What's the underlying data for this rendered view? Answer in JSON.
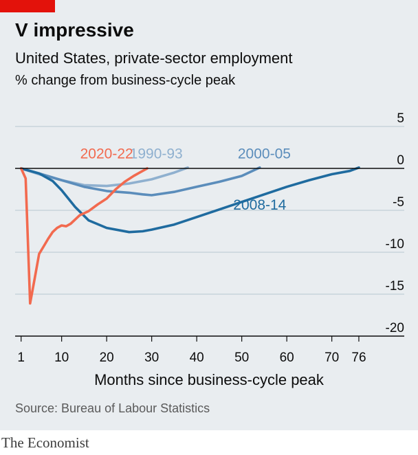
{
  "header": {
    "title": "V impressive",
    "subtitle": "United States, private-sector employment",
    "unit": "% change from business-cycle peak"
  },
  "footer": {
    "source": "Source: Bureau of Labour Statistics",
    "brand": "The Economist"
  },
  "colors": {
    "background": "#e9edf0",
    "grid": "#b7c6cf",
    "zero_line": "#0c0c0c",
    "accent_tag": "#e3120b"
  },
  "chart_data": {
    "type": "line",
    "xlabel": "Months since business-cycle peak",
    "xlim": [
      0,
      78
    ],
    "ylim": [
      -20,
      5
    ],
    "x_ticks": [
      {
        "v": 1,
        "label": "1"
      },
      {
        "v": 10,
        "label": "10"
      },
      {
        "v": 20,
        "label": "20"
      },
      {
        "v": 30,
        "label": "30"
      },
      {
        "v": 40,
        "label": "40"
      },
      {
        "v": 50,
        "label": "50"
      },
      {
        "v": 60,
        "label": "60"
      },
      {
        "v": 70,
        "label": "70"
      },
      {
        "v": 76,
        "label": "76"
      }
    ],
    "y_ticks": [
      {
        "v": 5,
        "label": "5"
      },
      {
        "v": 0,
        "label": "0"
      },
      {
        "v": -5,
        "label": "-5"
      },
      {
        "v": -10,
        "label": "-10"
      },
      {
        "v": -15,
        "label": "-15"
      },
      {
        "v": -20,
        "label": "-20"
      }
    ],
    "grid": true,
    "series": [
      {
        "name": "1990-93",
        "color": "#8fb0cf",
        "label_x": 31,
        "label_y": 1.2,
        "x": [
          1,
          5,
          10,
          15,
          20,
          25,
          30,
          35,
          38
        ],
        "y": [
          0,
          -0.7,
          -1.4,
          -2.0,
          -2.1,
          -1.8,
          -1.3,
          -0.5,
          0.1
        ]
      },
      {
        "name": "2000-05",
        "color": "#5b8dbb",
        "label_x": 55,
        "label_y": 1.2,
        "x": [
          1,
          5,
          10,
          15,
          20,
          25,
          28,
          30,
          35,
          40,
          45,
          50,
          54
        ],
        "y": [
          0,
          -0.6,
          -1.4,
          -2.2,
          -2.7,
          -2.9,
          -3.1,
          -3.2,
          -2.8,
          -2.2,
          -1.6,
          -0.9,
          0.1
        ]
      },
      {
        "name": "2008-14",
        "color": "#1f6b9f",
        "label_x": 54,
        "label_y": -4.9,
        "x": [
          1,
          5,
          8,
          10,
          13,
          16,
          20,
          25,
          28,
          30,
          35,
          40,
          45,
          50,
          55,
          60,
          65,
          70,
          74,
          76
        ],
        "y": [
          0,
          -0.6,
          -1.5,
          -2.6,
          -4.6,
          -6.2,
          -7.1,
          -7.6,
          -7.5,
          -7.3,
          -6.7,
          -5.8,
          -4.9,
          -4.0,
          -3.1,
          -2.2,
          -1.4,
          -0.7,
          -0.3,
          0.1
        ]
      },
      {
        "name": "2020-22",
        "color": "#f26a4f",
        "label_x": 20,
        "label_y": 1.2,
        "x": [
          1,
          2,
          3,
          4,
          5,
          6,
          7,
          8,
          9,
          10,
          11,
          12,
          14,
          16,
          18,
          20,
          22,
          24,
          26,
          28,
          29
        ],
        "y": [
          0,
          -1.2,
          -16.1,
          -13.2,
          -10.2,
          -9.3,
          -8.4,
          -7.6,
          -7.1,
          -6.8,
          -6.9,
          -6.6,
          -5.6,
          -5.1,
          -4.3,
          -3.6,
          -2.5,
          -1.6,
          -0.9,
          -0.3,
          0
        ]
      }
    ]
  }
}
